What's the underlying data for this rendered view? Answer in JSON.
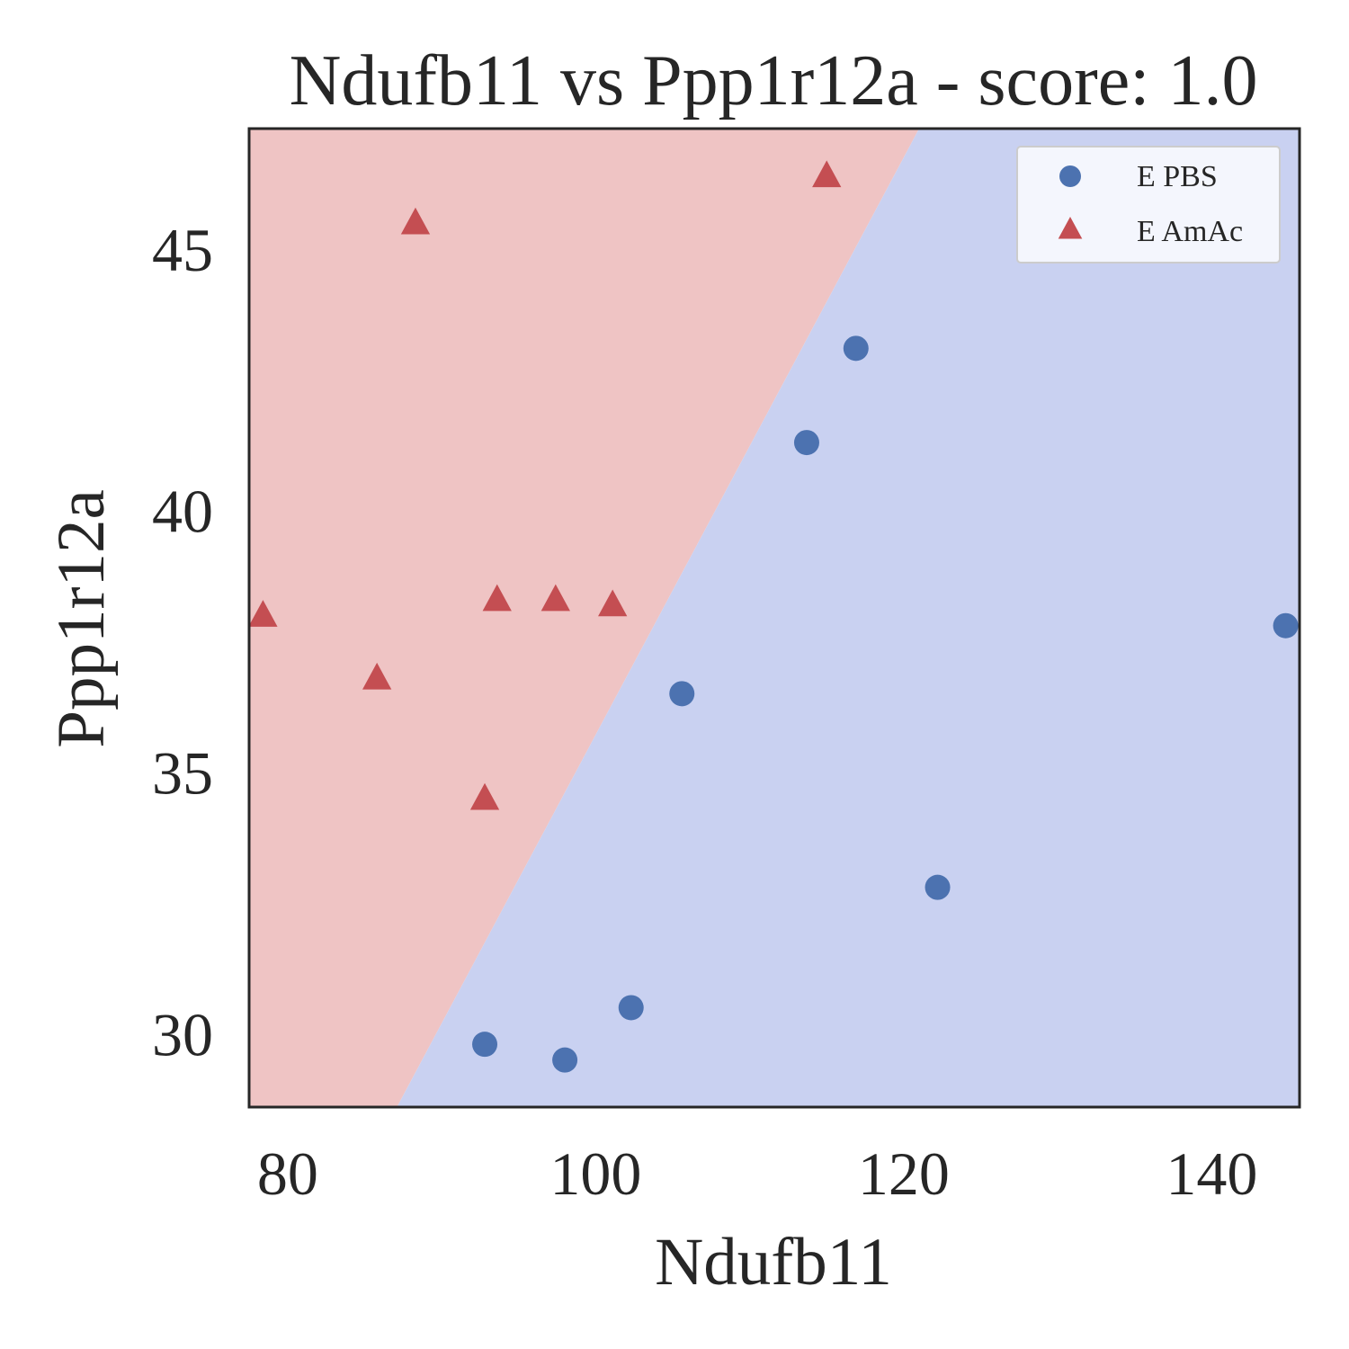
{
  "chart_data": {
    "type": "scatter",
    "title": "Ndufb11 vs Ppp1r12a - score: 1.0",
    "xlabel": "Ndufb11",
    "ylabel": "Ppp1r12a",
    "xlim": [
      77.5,
      145.7
    ],
    "ylim": [
      28.6,
      47.3
    ],
    "xticks": [
      80,
      100,
      120,
      140
    ],
    "yticks": [
      30,
      35,
      40,
      45
    ],
    "grid": false,
    "legend_position": "top-right",
    "decision_regions": {
      "boundary_line": [
        [
          87.1,
          28.6
        ],
        [
          121.0,
          47.3
        ]
      ],
      "left_region_class": "E AmAc",
      "right_region_class": "E PBS",
      "left_color": "#efc4c4",
      "right_color": "#c9d1f1"
    },
    "series": [
      {
        "name": "E PBS",
        "marker": "circle",
        "color": "#4c72b0",
        "points": [
          [
            92.8,
            29.8
          ],
          [
            98.0,
            29.5
          ],
          [
            102.3,
            30.5
          ],
          [
            105.6,
            36.5
          ],
          [
            113.7,
            41.3
          ],
          [
            116.9,
            43.1
          ],
          [
            122.2,
            32.8
          ],
          [
            144.8,
            37.8
          ]
        ]
      },
      {
        "name": "E AmAc",
        "marker": "triangle",
        "color": "#c44e52",
        "points": [
          [
            78.4,
            38.0
          ],
          [
            85.8,
            36.8
          ],
          [
            88.3,
            45.5
          ],
          [
            92.8,
            34.5
          ],
          [
            93.6,
            38.3
          ],
          [
            97.4,
            38.3
          ],
          [
            101.1,
            38.2
          ],
          [
            115.0,
            46.4
          ]
        ]
      }
    ]
  }
}
